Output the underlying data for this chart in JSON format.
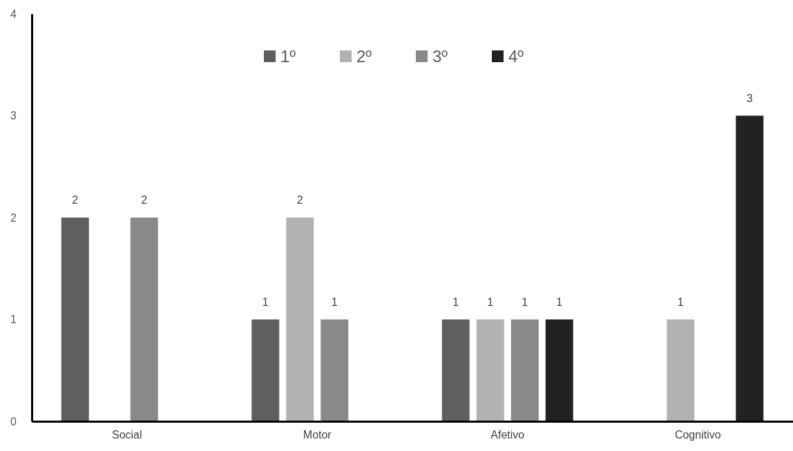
{
  "chart_data": {
    "type": "bar",
    "categories": [
      "Social",
      "Motor",
      "Afetivo",
      "Cognitivo"
    ],
    "series": [
      {
        "name": "1º",
        "color": "#5f5f5f",
        "values": [
          2,
          1,
          1,
          null
        ]
      },
      {
        "name": "2º",
        "color": "#b2b2b2",
        "values": [
          null,
          2,
          1,
          1
        ]
      },
      {
        "name": "3º",
        "color": "#898989",
        "values": [
          2,
          1,
          1,
          null
        ]
      },
      {
        "name": "4º",
        "color": "#222222",
        "values": [
          null,
          null,
          1,
          3
        ]
      }
    ],
    "ylim": [
      0,
      4
    ],
    "yticks": [
      0,
      1,
      2,
      3,
      4
    ],
    "grid": false,
    "legend": "top",
    "data_labels": true
  }
}
